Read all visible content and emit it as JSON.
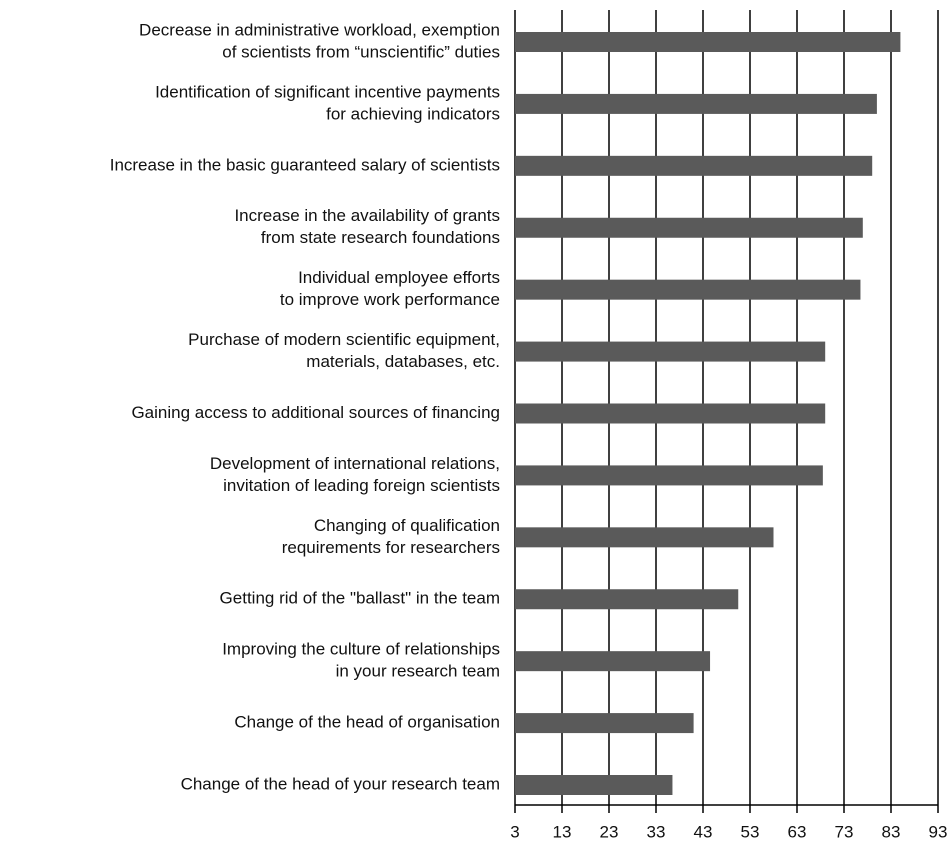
{
  "chart_data": {
    "type": "barh",
    "categories": [
      [
        "Decrease in administrative workload, exemption",
        "of scientists from “unscientific” duties"
      ],
      [
        "Identification of significant incentive payments",
        "for achieving indicators"
      ],
      [
        "Increase in the basic guaranteed salary of scientists"
      ],
      [
        "Increase in the availability of grants",
        "from state research foundations"
      ],
      [
        "Individual employee efforts",
        "to improve work performance"
      ],
      [
        "Purchase of modern scientific equipment,",
        "materials, databases, etc."
      ],
      [
        "Gaining access to additional sources of financing"
      ],
      [
        "Development of international relations,",
        "invitation of leading foreign scientists"
      ],
      [
        "Changing of qualification",
        "requirements for researchers"
      ],
      [
        "Getting rid of the \"ballast\" in the team"
      ],
      [
        "Improving the culture of relationships",
        "in your research team"
      ],
      [
        "Change of the head of organisation"
      ],
      [
        "Change of the head of your research team"
      ]
    ],
    "values": [
      85,
      80,
      79,
      77,
      76.5,
      69,
      69,
      68.5,
      58,
      50.5,
      44.5,
      41,
      36.5
    ],
    "color": "#5a5a5a",
    "xlim": [
      3,
      93
    ],
    "xticks": [
      3,
      13,
      23,
      33,
      43,
      53,
      63,
      73,
      83,
      93
    ],
    "grid": true
  }
}
